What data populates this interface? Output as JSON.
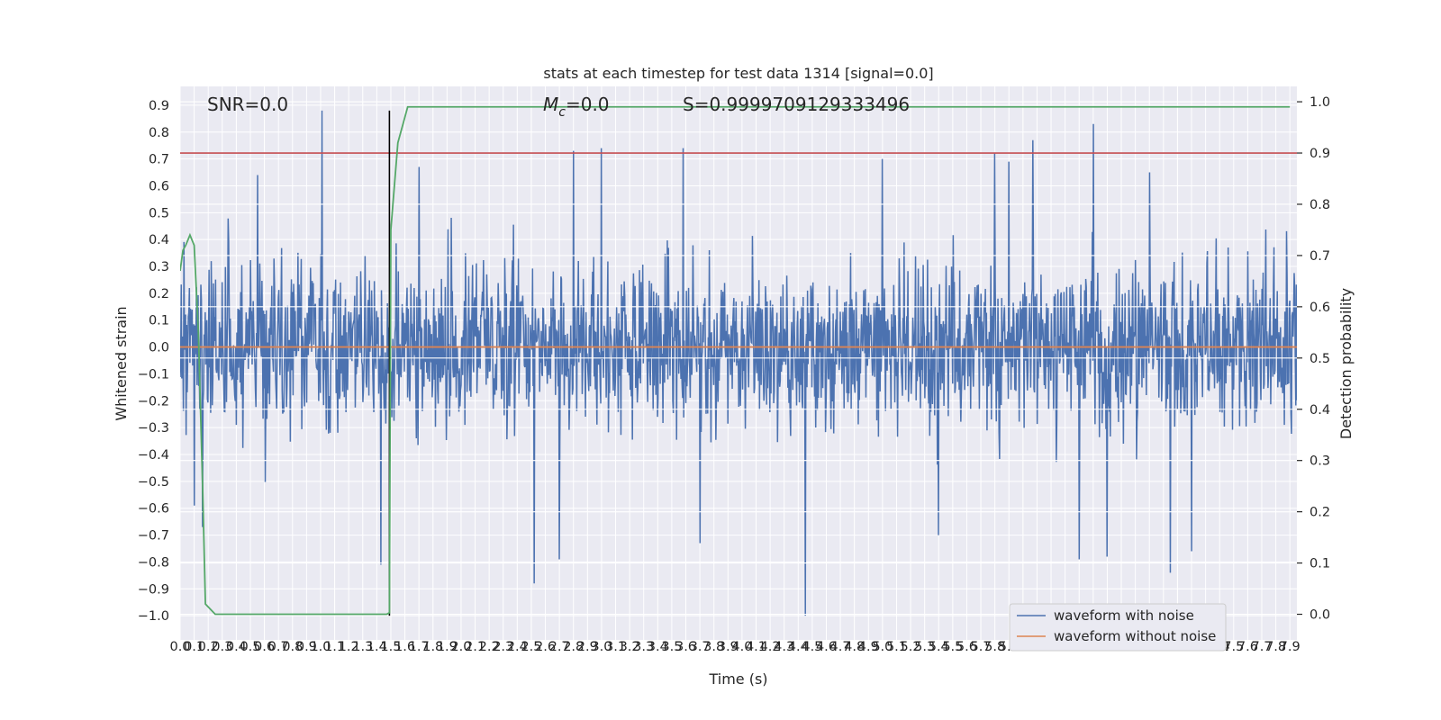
{
  "chart_data": {
    "type": "line",
    "title": "stats at each timestep for test data 1314 [signal=0.0]",
    "xlabel": "Time (s)",
    "ylabel_left": "Whitened strain",
    "ylabel_right": "Detection probability",
    "xlim": [
      0.0,
      7.95
    ],
    "ylim_left": [
      -1.09,
      0.97
    ],
    "ylim_right": [
      -0.05,
      1.03
    ],
    "x_ticks": [
      "0.0",
      "0.1",
      "0.2",
      "0.3",
      "0.4",
      "0.5",
      "0.6",
      "0.7",
      "0.8",
      "0.9",
      "1.0",
      "1.1",
      "1.2",
      "1.3",
      "1.4",
      "1.5",
      "1.6",
      "1.7",
      "1.8",
      "1.9",
      "2.0",
      "2.1",
      "2.2",
      "2.3",
      "2.4",
      "2.5",
      "2.6",
      "2.7",
      "2.8",
      "2.9",
      "3.0",
      "3.1",
      "3.2",
      "3.3",
      "3.4",
      "3.5",
      "3.6",
      "3.7",
      "3.8",
      "3.9",
      "4.0",
      "4.1",
      "4.2",
      "4.3",
      "4.4",
      "4.5",
      "4.6",
      "4.7",
      "4.8",
      "4.9",
      "5.0",
      "5.1",
      "5.2",
      "5.3",
      "5.4",
      "5.5",
      "5.6",
      "5.7",
      "5.8",
      "5.9",
      "6.0",
      "6.1",
      "6.2",
      "6.3",
      "6.4",
      "6.5",
      "6.6",
      "6.7",
      "6.8",
      "6.9",
      "7.0",
      "7.1",
      "7.2",
      "7.3",
      "7.4",
      "7.5",
      "7.6",
      "7.7",
      "7.8",
      "7.9"
    ],
    "y_ticks_left": [
      "0.9",
      "0.8",
      "0.7",
      "0.6",
      "0.5",
      "0.4",
      "0.3",
      "0.2",
      "0.1",
      "0.0",
      "−0.1",
      "−0.2",
      "−0.3",
      "−0.4",
      "−0.5",
      "−0.6",
      "−0.7",
      "−0.8",
      "−0.9",
      "−1.0"
    ],
    "y_ticks_right": [
      "1.0",
      "0.9",
      "0.8",
      "0.7",
      "0.6",
      "0.5",
      "0.4",
      "0.3",
      "0.2",
      "0.1",
      "0.0"
    ],
    "annotations": {
      "snr": "SNR=0.0",
      "mc_symbol": "M",
      "mc_sub": "c",
      "mc_value": "=0.0",
      "s_value": "S=0.9999709129333496"
    },
    "threshold_right": 0.9,
    "event_line_x": 1.49,
    "event_line_ylim": [
      -1.0,
      0.88
    ],
    "noise": {
      "name": "waveform with noise",
      "color": "#4c72b0",
      "samples": 2048,
      "core_sigma": 0.15,
      "peaks": [
        {
          "x": 1.01,
          "y": 0.88
        },
        {
          "x": 4.45,
          "y": -1.0
        },
        {
          "x": 6.5,
          "y": 0.83
        },
        {
          "x": 2.52,
          "y": -0.88
        },
        {
          "x": 7.05,
          "y": -0.84
        },
        {
          "x": 6.07,
          "y": 0.77
        },
        {
          "x": 1.43,
          "y": -0.81
        },
        {
          "x": 2.7,
          "y": -0.79
        },
        {
          "x": 3.58,
          "y": 0.74
        },
        {
          "x": 3.0,
          "y": 0.74
        },
        {
          "x": 2.8,
          "y": 0.73
        },
        {
          "x": 6.6,
          "y": -0.78
        },
        {
          "x": 6.4,
          "y": -0.79
        },
        {
          "x": 7.2,
          "y": -0.76
        },
        {
          "x": 5.0,
          "y": 0.7
        },
        {
          "x": 5.9,
          "y": 0.69
        },
        {
          "x": 5.8,
          "y": 0.72
        },
        {
          "x": 6.9,
          "y": 0.65
        },
        {
          "x": 0.55,
          "y": -0.7
        },
        {
          "x": 0.16,
          "y": -0.67
        },
        {
          "x": 1.7,
          "y": 0.67
        },
        {
          "x": 0.1,
          "y": -0.59
        },
        {
          "x": 3.7,
          "y": -0.73
        },
        {
          "x": 5.4,
          "y": -0.7
        },
        {
          "x": 0.55,
          "y": 0.64
        }
      ]
    },
    "clean": {
      "name": "waveform without noise",
      "color": "#dd8452",
      "value": 0.0
    },
    "probability": {
      "color": "#55a868",
      "x": [
        0.0,
        0.02,
        0.04,
        0.07,
        0.1,
        0.13,
        0.16,
        0.18,
        0.25,
        0.4,
        1.2,
        1.47,
        1.49,
        1.5,
        1.55,
        1.62,
        7.9
      ],
      "y": [
        0.67,
        0.71,
        0.72,
        0.74,
        0.72,
        0.55,
        0.25,
        0.02,
        0.0,
        0.0,
        0.0,
        0.0,
        0.003,
        0.75,
        0.92,
        0.99,
        0.99
      ]
    },
    "threshold_color": "#c44e52",
    "legend_position": "lower right",
    "grid": true
  }
}
